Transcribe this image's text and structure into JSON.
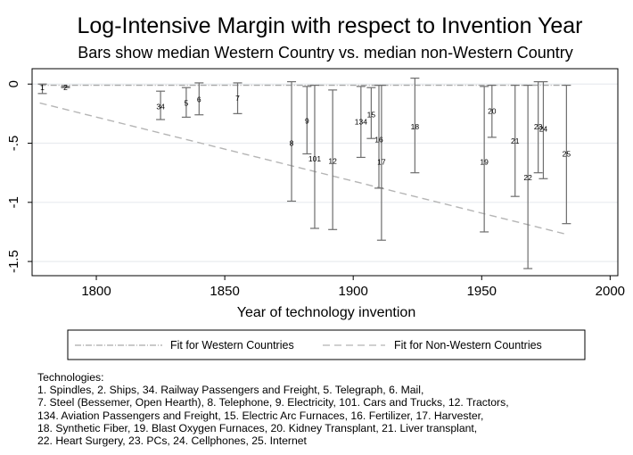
{
  "chart_data": {
    "type": "error-bar",
    "title": "Log-Intensive Margin with respect to Invention Year",
    "subtitle": "Bars show median Western Country vs. median non-Western Country",
    "xlabel": "Year of technology invention",
    "ylabel": "",
    "xlim": [
      1775,
      2003
    ],
    "ylim": [
      -1.62,
      0.13
    ],
    "xticks": [
      1800,
      1850,
      1900,
      1950,
      2000
    ],
    "yticks": [
      0,
      -0.5,
      -1,
      -1.5
    ],
    "ytick_labels": [
      "0",
      "-.5",
      "-1",
      "-1.5"
    ],
    "grid": true,
    "items": [
      {
        "label": "1",
        "x": 1779,
        "y": -0.03,
        "lo": -0.08,
        "hi": 0.0
      },
      {
        "label": "2",
        "x": 1788,
        "y": -0.03,
        "lo": -0.03,
        "hi": -0.02
      },
      {
        "label": "34",
        "x": 1825,
        "y": -0.19,
        "lo": -0.3,
        "hi": -0.06
      },
      {
        "label": "5",
        "x": 1835,
        "y": -0.16,
        "lo": -0.28,
        "hi": -0.03
      },
      {
        "label": "6",
        "x": 1840,
        "y": -0.13,
        "lo": -0.26,
        "hi": 0.01
      },
      {
        "label": "7",
        "x": 1855,
        "y": -0.12,
        "lo": -0.25,
        "hi": 0.01
      },
      {
        "label": "8",
        "x": 1876,
        "y": -0.5,
        "lo": -0.99,
        "hi": 0.02
      },
      {
        "label": "9",
        "x": 1882,
        "y": -0.31,
        "lo": -0.59,
        "hi": -0.02
      },
      {
        "label": "101",
        "x": 1885,
        "y": -0.63,
        "lo": -1.22,
        "hi": -0.01
      },
      {
        "label": "12",
        "x": 1892,
        "y": -0.65,
        "lo": -1.23,
        "hi": -0.05
      },
      {
        "label": "134",
        "x": 1903,
        "y": -0.32,
        "lo": -0.62,
        "hi": -0.02
      },
      {
        "label": "15",
        "x": 1907,
        "y": -0.26,
        "lo": -0.46,
        "hi": -0.03
      },
      {
        "label": "16",
        "x": 1910,
        "y": -0.47,
        "lo": -0.88,
        "hi": -0.01
      },
      {
        "label": "17",
        "x": 1911,
        "y": -0.66,
        "lo": -1.32,
        "hi": -0.01
      },
      {
        "label": "18",
        "x": 1924,
        "y": -0.36,
        "lo": -0.75,
        "hi": 0.05
      },
      {
        "label": "19",
        "x": 1951,
        "y": -0.66,
        "lo": -1.25,
        "hi": -0.02
      },
      {
        "label": "20",
        "x": 1954,
        "y": -0.23,
        "lo": -0.45,
        "hi": -0.01
      },
      {
        "label": "21",
        "x": 1963,
        "y": -0.48,
        "lo": -0.95,
        "hi": -0.01
      },
      {
        "label": "22",
        "x": 1968,
        "y": -0.79,
        "lo": -1.56,
        "hi": -0.01
      },
      {
        "label": "23",
        "x": 1972,
        "y": -0.36,
        "lo": -0.75,
        "hi": 0.02
      },
      {
        "label": "24",
        "x": 1974,
        "y": -0.38,
        "lo": -0.8,
        "hi": 0.02
      },
      {
        "label": "25",
        "x": 1983,
        "y": -0.59,
        "lo": -1.18,
        "hi": -0.01
      }
    ],
    "series": [
      {
        "name": "Fit for Western Countries",
        "x": [
          1778,
          1983
        ],
        "y": [
          -0.01,
          -0.01
        ]
      },
      {
        "name": "Fit for Non-Western Countries",
        "x": [
          1778,
          1983
        ],
        "y": [
          -0.16,
          -1.27
        ]
      }
    ],
    "legend_position": "bottom",
    "colors": {
      "errorbar": "#6e6e6e",
      "fit_western": "#a9a9a9",
      "fit_nonwestern": "#b5b5b5",
      "grid": "#e9ecef"
    }
  },
  "notes": {
    "heading": "Technologies:",
    "lines": [
      "1. Spindles, 2. Ships, 34. Railway Passengers and Freight, 5. Telegraph,  6. Mail,",
      "7. Steel (Bessemer, Open Hearth), 8. Telephone, 9. Electricity, 101. Cars and Trucks, 12. Tractors,",
      "134. Aviation Passengers and Freight, 15. Electric Arc Furnaces, 16. Fertilizer, 17. Harvester,",
      "18. Synthetic Fiber, 19. Blast Oxygen Furnaces, 20. Kidney Transplant, 21. Liver transplant,",
      "22. Heart Surgery,  23. PCs, 24. Cellphones, 25. Internet"
    ]
  }
}
